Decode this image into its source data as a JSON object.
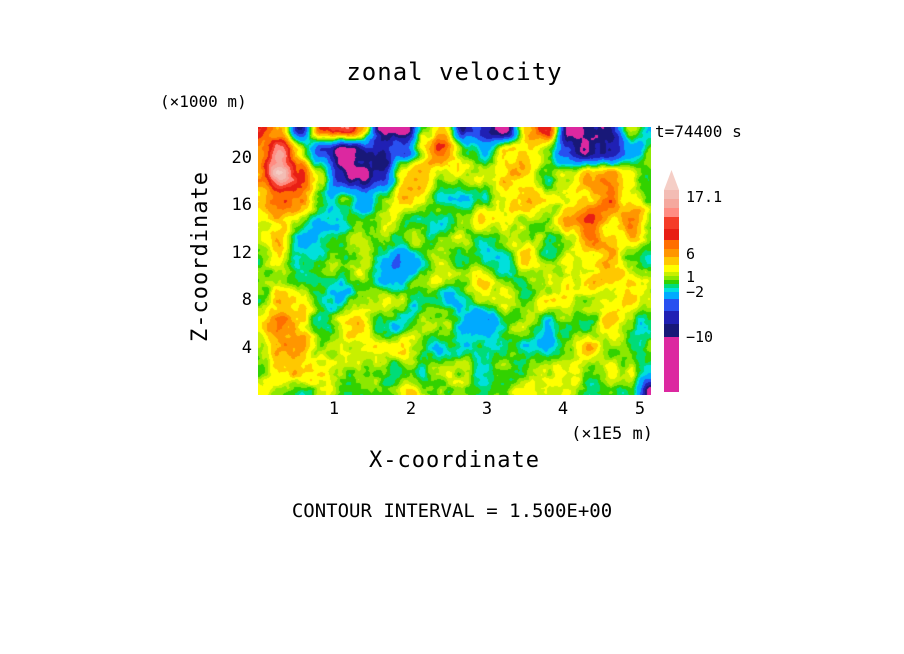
{
  "title": "zonal velocity",
  "labels": {
    "y_unit": "(×1000 m)",
    "y_axis": "Z-coordinate",
    "x_axis": "X-coordinate",
    "x_unit": "(×1E5 m)",
    "time": "t=74400 s",
    "contour_interval": "CONTOUR INTERVAL = 1.500E+00"
  },
  "chart_data": {
    "type": "heatmap",
    "title": "zonal velocity",
    "xlabel": "X-coordinate",
    "ylabel": "Z-coordinate",
    "x_unit_scale": "(×1E5 m)",
    "y_unit_scale": "(×1000 m)",
    "time_label": "t=74400 s",
    "contour_interval": 1.5,
    "x_ticks": [
      1,
      2,
      3,
      4,
      5
    ],
    "y_ticks": [
      20,
      16,
      12,
      8,
      4
    ],
    "x_range": [
      0,
      5.15
    ],
    "y_range": [
      0,
      22.6
    ],
    "grid": "off",
    "legend_position": "right-colorbar",
    "levels": [
      -10,
      -8.5,
      -6.5,
      -4.5,
      -2,
      -1,
      0,
      1,
      2,
      3,
      4.5,
      6,
      7.5,
      9,
      10.5,
      12,
      13.5,
      15,
      16.5
    ],
    "colors": [
      "#DC28A0",
      "#181878",
      "#2020B4",
      "#2850F0",
      "#00AAFF",
      "#00E0DC",
      "#00DC78",
      "#32D200",
      "#8CE800",
      "#C8F000",
      "#FFFF00",
      "#FFC800",
      "#FF9600",
      "#FF6E00",
      "#E81E14",
      "#F53C28",
      "#FF8C82",
      "#F5A89E",
      "#F3BCB4",
      "#F5CEC6"
    ],
    "colorbar": {
      "tip_color": "#F5CEC6",
      "tip_h": 20,
      "segments": [
        {
          "color": "#F3BCB4",
          "h": 9
        },
        {
          "color": "#F5A89E",
          "h": 9
        },
        {
          "color": "#FF8C82",
          "h": 9
        },
        {
          "color": "#F53C28",
          "h": 12
        },
        {
          "color": "#E81E14",
          "h": 11
        },
        {
          "color": "#FF6E00",
          "h": 9
        },
        {
          "color": "#FF9600",
          "h": 8
        },
        {
          "color": "#FFC800",
          "h": 8
        },
        {
          "color": "#FFFF00",
          "h": 7
        },
        {
          "color": "#C8F000",
          "h": 4
        },
        {
          "color": "#8CE800",
          "h": 4
        },
        {
          "color": "#32D200",
          "h": 4
        },
        {
          "color": "#00DC78",
          "h": 4
        },
        {
          "color": "#00E0DC",
          "h": 4
        },
        {
          "color": "#00AAFF",
          "h": 7
        },
        {
          "color": "#2850F0",
          "h": 12
        },
        {
          "color": "#2020B4",
          "h": 13
        },
        {
          "color": "#181878",
          "h": 13
        },
        {
          "color": "#DC28A0",
          "h": 55
        }
      ],
      "labels": [
        {
          "text": "17.1",
          "y": 19
        },
        {
          "text": "6",
          "y": 76
        },
        {
          "text": "1",
          "y": 99
        },
        {
          "text": "−2",
          "y": 114
        },
        {
          "text": "−10",
          "y": 159
        }
      ]
    },
    "field": {
      "nx": 20,
      "nz": 12,
      "order": "rows top (z max) to bottom (z=0)",
      "units": "m/s (approximate, read from color scale)",
      "values": [
        [
          8,
          6,
          -9,
          9,
          11,
          8,
          -9,
          -11,
          3,
          6,
          -7,
          -10,
          -11,
          6,
          10,
          -9,
          -11,
          -9,
          1,
          -4
        ],
        [
          9,
          12,
          4,
          -8,
          -11,
          -10,
          -11,
          -5,
          4,
          7,
          2,
          -2,
          5,
          7,
          2,
          -5,
          -11,
          -8,
          -2,
          2
        ],
        [
          7,
          14,
          9,
          2,
          -9,
          -11,
          -7,
          6,
          7,
          3,
          1,
          3,
          7,
          3,
          -2,
          2,
          6,
          7,
          3,
          -1
        ],
        [
          4,
          9,
          6,
          1,
          -2,
          -4,
          2,
          5,
          2,
          0,
          -2,
          1,
          4,
          6,
          3,
          1,
          5,
          8,
          4,
          1
        ],
        [
          2,
          3,
          1,
          -3,
          -3,
          1,
          3,
          1,
          -1,
          -3,
          0,
          3,
          4,
          1,
          2,
          5,
          7,
          4,
          6,
          2
        ],
        [
          1,
          3,
          -1,
          -3,
          0,
          3,
          1,
          -2,
          0,
          2,
          1,
          -1,
          2,
          4,
          1,
          3,
          6,
          8,
          3,
          1
        ],
        [
          3,
          1,
          -2,
          0,
          2,
          4,
          0,
          -3,
          -1,
          2,
          3,
          2,
          0,
          2,
          4,
          2,
          5,
          7,
          4,
          2
        ],
        [
          2,
          4,
          2,
          0,
          -2,
          1,
          3,
          2,
          0,
          -2,
          0,
          3,
          2,
          0,
          3,
          5,
          3,
          2,
          5,
          3
        ],
        [
          4,
          6,
          3,
          1,
          2,
          4,
          1,
          -1,
          1,
          2,
          -2,
          -3,
          1,
          2,
          1,
          3,
          2,
          4,
          2,
          1
        ],
        [
          3,
          5,
          6,
          2,
          3,
          1,
          2,
          3,
          1,
          -1,
          -3,
          0,
          2,
          -2,
          -1,
          2,
          4,
          2,
          3,
          2
        ],
        [
          2,
          3,
          4,
          2,
          1,
          2,
          3,
          1,
          0,
          2,
          1,
          -2,
          1,
          3,
          2,
          1,
          2,
          3,
          1,
          -2
        ],
        [
          3,
          2,
          1,
          3,
          2,
          1,
          2,
          4,
          2,
          1,
          2,
          1,
          0,
          2,
          1,
          2,
          1,
          2,
          -1,
          -12
        ]
      ]
    }
  }
}
